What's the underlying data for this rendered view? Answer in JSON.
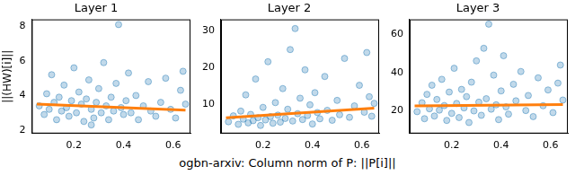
{
  "chart_data": [
    {
      "type": "scatter",
      "title": "Layer 1",
      "ylabel": "||(HW)[i]||",
      "xlim": [
        0.03,
        0.67
      ],
      "xticks": [
        0.2,
        0.4,
        0.6
      ],
      "ylim": [
        1.8,
        8.4
      ],
      "yticks": [
        2,
        4,
        6,
        8
      ],
      "grid": false,
      "series": [
        {
          "type": "scatter",
          "marker": "circle",
          "color": "#1f77b4",
          "x": [
            0.06,
            0.08,
            0.09,
            0.1,
            0.11,
            0.12,
            0.13,
            0.14,
            0.15,
            0.16,
            0.17,
            0.18,
            0.19,
            0.2,
            0.21,
            0.22,
            0.23,
            0.24,
            0.25,
            0.26,
            0.27,
            0.28,
            0.29,
            0.3,
            0.31,
            0.32,
            0.33,
            0.34,
            0.35,
            0.36,
            0.37,
            0.38,
            0.39,
            0.4,
            0.41,
            0.42,
            0.43,
            0.45,
            0.46,
            0.48,
            0.5,
            0.51,
            0.53,
            0.55,
            0.57,
            0.59,
            0.61,
            0.63,
            0.65,
            0.64,
            0.27
          ],
          "values": [
            3.4,
            2.9,
            4.1,
            3.2,
            5.2,
            3.6,
            2.6,
            3.9,
            3.1,
            4.6,
            3.3,
            2.8,
            3.7,
            5.6,
            3.0,
            4.2,
            3.5,
            2.5,
            3.8,
            4.9,
            3.2,
            2.7,
            3.6,
            4.4,
            3.0,
            5.9,
            3.4,
            2.6,
            3.9,
            3.1,
            4.7,
            8.1,
            3.3,
            2.9,
            3.7,
            5.3,
            3.0,
            4.0,
            2.6,
            3.4,
            4.8,
            3.1,
            2.8,
            3.6,
            5.0,
            3.2,
            2.7,
            4.3,
            3.5,
            5.4,
            2.3
          ]
        },
        {
          "type": "line",
          "line_style": "solid",
          "color": "#ff7f0e",
          "x": [
            0.05,
            0.65
          ],
          "values": [
            3.5,
            3.15
          ]
        }
      ]
    },
    {
      "type": "scatter",
      "title": "Layer 2",
      "xlabel": "ogbn-arxiv: Column norm of P: ||P[i]||",
      "xlim": [
        0.03,
        0.67
      ],
      "xticks": [
        0.2,
        0.4,
        0.6
      ],
      "ylim": [
        2,
        33
      ],
      "yticks": [
        10,
        20,
        30
      ],
      "grid": false,
      "series": [
        {
          "type": "scatter",
          "marker": "circle",
          "color": "#1f77b4",
          "x": [
            0.06,
            0.08,
            0.1,
            0.11,
            0.12,
            0.13,
            0.14,
            0.15,
            0.16,
            0.17,
            0.18,
            0.19,
            0.2,
            0.21,
            0.22,
            0.23,
            0.24,
            0.25,
            0.26,
            0.27,
            0.28,
            0.29,
            0.3,
            0.31,
            0.32,
            0.33,
            0.34,
            0.35,
            0.36,
            0.37,
            0.38,
            0.39,
            0.4,
            0.41,
            0.42,
            0.43,
            0.45,
            0.46,
            0.48,
            0.5,
            0.51,
            0.53,
            0.55,
            0.57,
            0.59,
            0.61,
            0.63,
            0.64,
            0.65,
            0.62
          ],
          "values": [
            5.2,
            6.8,
            4.5,
            8.1,
            5.9,
            12.5,
            4.9,
            7.2,
            5.5,
            16.8,
            6.3,
            4.2,
            9.1,
            5.7,
            21.5,
            6.6,
            4.8,
            10.4,
            7.0,
            5.1,
            14.2,
            6.1,
            8.6,
            24.8,
            5.4,
            30.5,
            7.4,
            11.6,
            5.8,
            19.3,
            6.9,
            9.8,
            4.6,
            13.1,
            7.7,
            6.0,
            17.5,
            8.3,
            5.6,
            11.0,
            7.1,
            22.4,
            6.4,
            9.5,
            15.1,
            7.8,
            12.0,
            6.7,
            10.2,
            24.0
          ]
        },
        {
          "type": "line",
          "line_style": "solid",
          "color": "#ff7f0e",
          "x": [
            0.05,
            0.65
          ],
          "values": [
            6.3,
            8.9
          ]
        }
      ]
    },
    {
      "type": "scatter",
      "title": "Layer 3",
      "xlim": [
        0.03,
        0.67
      ],
      "xticks": [
        0.2,
        0.4,
        0.6
      ],
      "ylim": [
        8,
        68
      ],
      "yticks": [
        20,
        40,
        60
      ],
      "grid": false,
      "series": [
        {
          "type": "scatter",
          "marker": "circle",
          "color": "#1f77b4",
          "x": [
            0.06,
            0.08,
            0.09,
            0.1,
            0.11,
            0.12,
            0.13,
            0.14,
            0.15,
            0.16,
            0.17,
            0.18,
            0.19,
            0.2,
            0.21,
            0.22,
            0.23,
            0.24,
            0.25,
            0.26,
            0.27,
            0.28,
            0.29,
            0.3,
            0.31,
            0.32,
            0.33,
            0.34,
            0.35,
            0.36,
            0.37,
            0.38,
            0.39,
            0.4,
            0.41,
            0.42,
            0.43,
            0.45,
            0.46,
            0.48,
            0.5,
            0.51,
            0.53,
            0.55,
            0.57,
            0.59,
            0.61,
            0.63,
            0.64,
            0.65
          ],
          "values": [
            19.5,
            24.2,
            15.8,
            28.6,
            21.0,
            33.4,
            17.2,
            25.9,
            20.3,
            36.5,
            22.7,
            14.9,
            29.8,
            18.6,
            42.3,
            23.8,
            16.4,
            31.2,
            21.5,
            27.4,
            13.8,
            35.0,
            19.9,
            46.2,
            24.5,
            17.6,
            52.8,
            26.3,
            65.5,
            20.8,
            38.7,
            23.1,
            15.3,
            30.4,
            48.9,
            22.0,
            18.2,
            33.9,
            25.2,
            40.6,
            20.1,
            28.0,
            16.9,
            37.3,
            22.6,
            30.9,
            19.0,
            34.5,
            44.0,
            25.6
          ]
        },
        {
          "type": "line",
          "line_style": "solid",
          "color": "#ff7f0e",
          "x": [
            0.05,
            0.65
          ],
          "values": [
            22.5,
            23.2
          ]
        }
      ]
    }
  ]
}
